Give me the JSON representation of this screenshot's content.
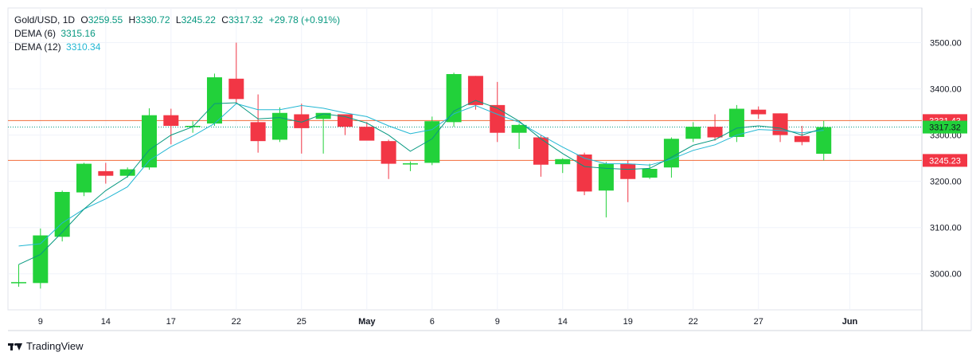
{
  "legend": {
    "symbol": "Gold/USD",
    "interval": "1D",
    "o_label": "O",
    "o_value": "3259.55",
    "h_label": "H",
    "h_value": "3330.72",
    "l_label": "L",
    "l_value": "3245.22",
    "c_label": "C",
    "c_value": "3317.32",
    "change": "+29.78 (+0.91%)",
    "dema6_label": "DEMA (6)",
    "dema6_value": "3315.16",
    "dema12_label": "DEMA (12)",
    "dema12_value": "3310.34"
  },
  "brand": {
    "name": "TradingView"
  },
  "colors": {
    "up": "#22d13a",
    "down": "#f23645",
    "dema6": "#089981",
    "dema12": "#22b7d3",
    "hline": "#f26b3a",
    "last_price": "#089981"
  },
  "chart_data": {
    "type": "candlestick",
    "x_tick_labels": [
      "9",
      "14",
      "17",
      "22",
      "25",
      "May",
      "6",
      "9",
      "14",
      "19",
      "22",
      "27",
      "Jun"
    ],
    "y_tick_labels": [
      "3000.00",
      "3100.00",
      "3200.00",
      "3300.00",
      "3400.00",
      "3500.00"
    ],
    "ylim": [
      2922,
      3575
    ],
    "price_labels": [
      {
        "text": "3331.43",
        "value": 3331.43,
        "kind": "line"
      },
      {
        "text": "3317.32",
        "value": 3317.32,
        "kind": "last"
      },
      {
        "text": "3245.23",
        "value": 3245.23,
        "kind": "line"
      }
    ],
    "horizontal_lines": [
      3331.43,
      3245.23
    ],
    "candles": [
      {
        "o": 2982,
        "h": 3020,
        "l": 2972,
        "c": 2982
      },
      {
        "o": 2980,
        "h": 3098,
        "l": 2968,
        "c": 3083
      },
      {
        "o": 3080,
        "h": 3180,
        "l": 3070,
        "c": 3177
      },
      {
        "o": 3176,
        "h": 3240,
        "l": 3168,
        "c": 3238
      },
      {
        "o": 3222,
        "h": 3240,
        "l": 3195,
        "c": 3212
      },
      {
        "o": 3212,
        "h": 3230,
        "l": 3208,
        "c": 3226
      },
      {
        "o": 3230,
        "h": 3358,
        "l": 3225,
        "c": 3343
      },
      {
        "o": 3343,
        "h": 3357,
        "l": 3280,
        "c": 3320
      },
      {
        "o": 3320,
        "h": 3330,
        "l": 3305,
        "c": 3320
      },
      {
        "o": 3325,
        "h": 3433,
        "l": 3320,
        "c": 3425
      },
      {
        "o": 3422,
        "h": 3500,
        "l": 3370,
        "c": 3378
      },
      {
        "o": 3328,
        "h": 3388,
        "l": 3262,
        "c": 3287
      },
      {
        "o": 3290,
        "h": 3360,
        "l": 3285,
        "c": 3348
      },
      {
        "o": 3345,
        "h": 3368,
        "l": 3260,
        "c": 3315
      },
      {
        "o": 3335,
        "h": 3345,
        "l": 3260,
        "c": 3348
      },
      {
        "o": 3345,
        "h": 3345,
        "l": 3300,
        "c": 3318
      },
      {
        "o": 3318,
        "h": 3328,
        "l": 3290,
        "c": 3288
      },
      {
        "o": 3287,
        "h": 3290,
        "l": 3205,
        "c": 3238
      },
      {
        "o": 3239,
        "h": 3243,
        "l": 3222,
        "c": 3239
      },
      {
        "o": 3240,
        "h": 3340,
        "l": 3235,
        "c": 3330
      },
      {
        "o": 3328,
        "h": 3435,
        "l": 3318,
        "c": 3432
      },
      {
        "o": 3428,
        "h": 3428,
        "l": 3355,
        "c": 3365
      },
      {
        "o": 3365,
        "h": 3415,
        "l": 3285,
        "c": 3305
      },
      {
        "o": 3305,
        "h": 3325,
        "l": 3270,
        "c": 3322
      },
      {
        "o": 3295,
        "h": 3300,
        "l": 3210,
        "c": 3236
      },
      {
        "o": 3237,
        "h": 3250,
        "l": 3218,
        "c": 3248
      },
      {
        "o": 3258,
        "h": 3262,
        "l": 3170,
        "c": 3178
      },
      {
        "o": 3180,
        "h": 3242,
        "l": 3122,
        "c": 3238
      },
      {
        "o": 3238,
        "h": 3245,
        "l": 3155,
        "c": 3205
      },
      {
        "o": 3208,
        "h": 3238,
        "l": 3205,
        "c": 3227
      },
      {
        "o": 3230,
        "h": 3295,
        "l": 3208,
        "c": 3292
      },
      {
        "o": 3292,
        "h": 3328,
        "l": 3285,
        "c": 3318
      },
      {
        "o": 3318,
        "h": 3345,
        "l": 3288,
        "c": 3295
      },
      {
        "o": 3296,
        "h": 3365,
        "l": 3285,
        "c": 3357
      },
      {
        "o": 3355,
        "h": 3362,
        "l": 3335,
        "c": 3345
      },
      {
        "o": 3347,
        "h": 3347,
        "l": 3285,
        "c": 3300
      },
      {
        "o": 3298,
        "h": 3320,
        "l": 3278,
        "c": 3285
      },
      {
        "o": 3259.55,
        "h": 3330.72,
        "l": 3245.22,
        "c": 3317.32
      }
    ],
    "dema6": [
      3020,
      3042,
      3090,
      3140,
      3180,
      3210,
      3268,
      3300,
      3318,
      3368,
      3370,
      3335,
      3338,
      3328,
      3346,
      3340,
      3326,
      3300,
      3265,
      3292,
      3352,
      3375,
      3358,
      3330,
      3292,
      3260,
      3232,
      3228,
      3226,
      3228,
      3252,
      3278,
      3290,
      3315,
      3320,
      3315,
      3300,
      3315.16
    ],
    "dema12": [
      3060,
      3065,
      3110,
      3140,
      3162,
      3188,
      3245,
      3275,
      3298,
      3325,
      3368,
      3355,
      3355,
      3364,
      3358,
      3348,
      3340,
      3320,
      3303,
      3312,
      3346,
      3364,
      3345,
      3328,
      3300,
      3274,
      3250,
      3238,
      3238,
      3235,
      3248,
      3267,
      3279,
      3300,
      3312,
      3310,
      3305,
      3310.34
    ]
  }
}
